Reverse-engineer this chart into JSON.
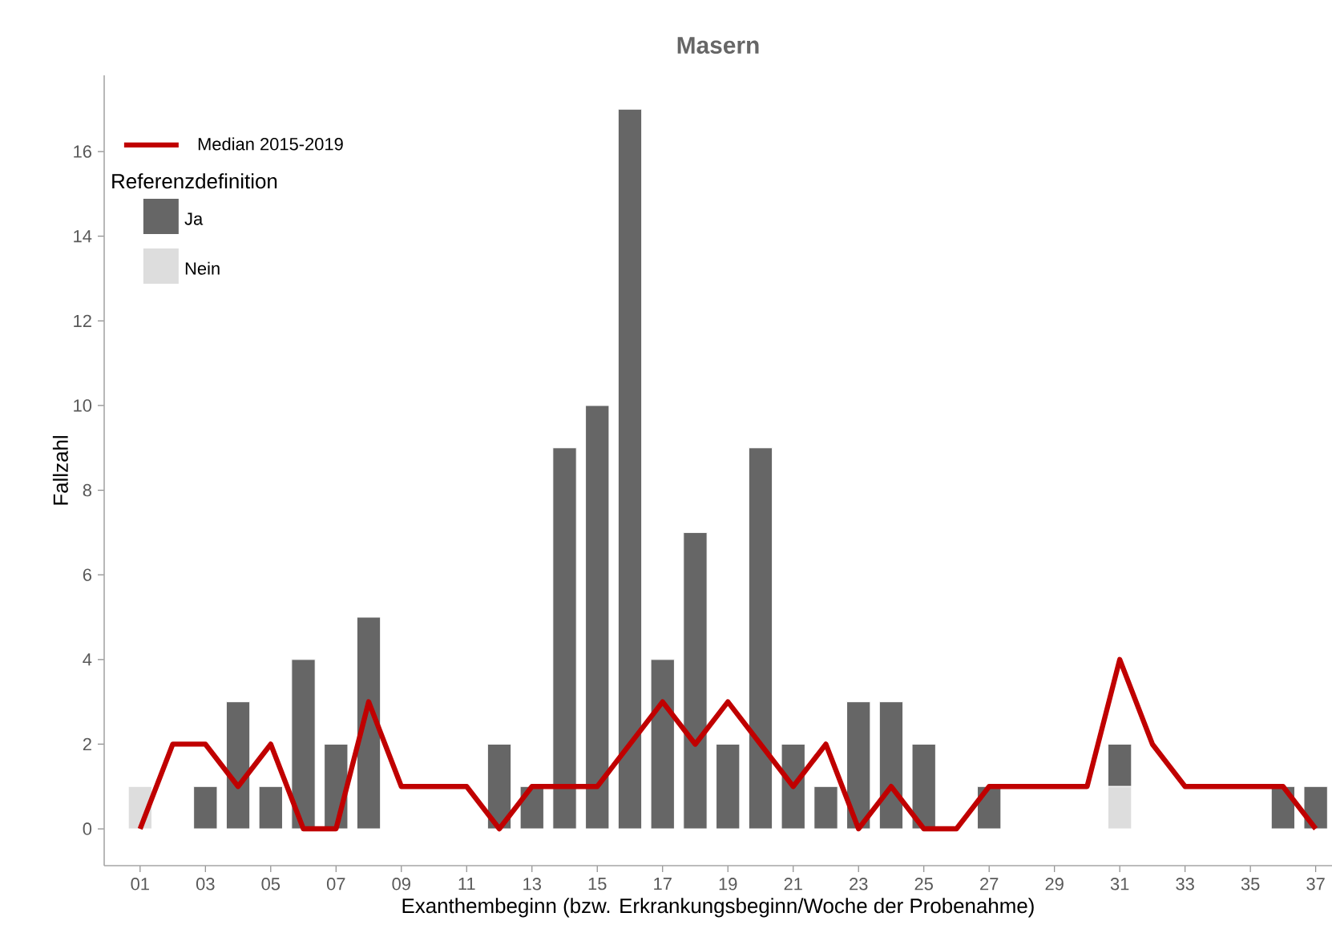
{
  "chart_data": {
    "type": "bar",
    "title": "Masern",
    "xlabel": "Exanthembeginn (bzw. Erkrankungsbeginn/Woche der Probenahme)",
    "ylabel": "Fallzahl",
    "legend_title": "Referenzdefinition",
    "categories": [
      "01",
      null,
      "03",
      null,
      "05",
      null,
      "07",
      null,
      "09",
      null,
      "11",
      null,
      "13",
      null,
      "15",
      null,
      "17",
      null,
      "19",
      null,
      "21",
      null,
      "23",
      null,
      "25",
      null,
      "27",
      null,
      "29",
      null,
      "31",
      null,
      "33",
      null,
      "35",
      null,
      "37"
    ],
    "stacked": true,
    "series": [
      {
        "name": "Median 2015-2019",
        "type": "line",
        "color": "#c00000",
        "values": [
          0,
          2,
          2,
          1,
          2,
          0,
          0,
          3,
          1,
          1,
          1,
          0,
          1,
          1,
          1,
          2,
          3,
          2,
          3,
          2,
          1,
          2,
          0,
          1,
          0,
          0,
          1,
          1,
          1,
          1,
          4,
          2,
          1,
          1,
          1,
          1,
          0
        ]
      },
      {
        "name": "Nein",
        "color": "#dddddd",
        "values": [
          1,
          0,
          0,
          0,
          0,
          0,
          0,
          0,
          0,
          0,
          0,
          0,
          0,
          0,
          0,
          0,
          0,
          0,
          0,
          0,
          0,
          0,
          0,
          0,
          0,
          0,
          0,
          0,
          0,
          0,
          1,
          0,
          0,
          0,
          0,
          0,
          0
        ]
      },
      {
        "name": "Ja",
        "color": "#666666",
        "values": [
          0,
          0,
          1,
          3,
          1,
          4,
          2,
          5,
          0,
          0,
          0,
          2,
          1,
          9,
          10,
          17,
          4,
          7,
          2,
          9,
          2,
          1,
          3,
          3,
          2,
          0,
          1,
          0,
          0,
          0,
          1,
          0,
          0,
          0,
          0,
          1,
          1
        ]
      }
    ],
    "ylim": [
      -0.87,
      17.8
    ],
    "yticks": [
      0,
      2,
      4,
      6,
      8,
      10,
      12,
      14,
      16
    ],
    "grid": false,
    "legend": "top left"
  }
}
